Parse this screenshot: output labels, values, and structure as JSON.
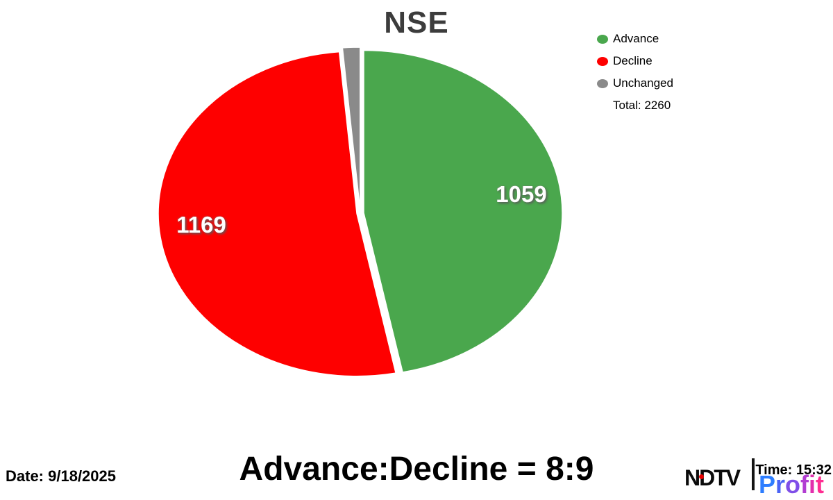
{
  "title": "NSE",
  "chart_data": {
    "type": "pie",
    "title": "NSE",
    "labels": [
      "Advance",
      "Decline",
      "Unchanged"
    ],
    "values": [
      1059,
      1169,
      32
    ],
    "colors": [
      "#4aa74d",
      "#fe0000",
      "#8a8a8a"
    ],
    "total": 2260,
    "total_label": "Total: 2260",
    "start_angle_deg": 0,
    "direction": "clockwise",
    "exploded": true,
    "legend_position": "top-right",
    "slice_value_labels": {
      "advance": 1059,
      "decline": 1169
    }
  },
  "legend": {
    "items": [
      {
        "label": "Advance",
        "color": "#4aa74d"
      },
      {
        "label": "Decline",
        "color": "#fe0000"
      },
      {
        "label": "Unchanged",
        "color": "#8a8a8a"
      }
    ],
    "total_label": "Total: 2260"
  },
  "footer": {
    "date": "Date: 9/18/2025",
    "ratio": "Advance:Decline = 8:9",
    "time": "Time: 15:32"
  },
  "brand": {
    "ndtv": "NDTV",
    "profit": "Profit",
    "profit_letter_colors": [
      "#2d7dff",
      "#4a63f5",
      "#7f4fe8",
      "#b23ed2",
      "#e22fad",
      "#ff2d92"
    ],
    "dot_color": "#e60000"
  }
}
